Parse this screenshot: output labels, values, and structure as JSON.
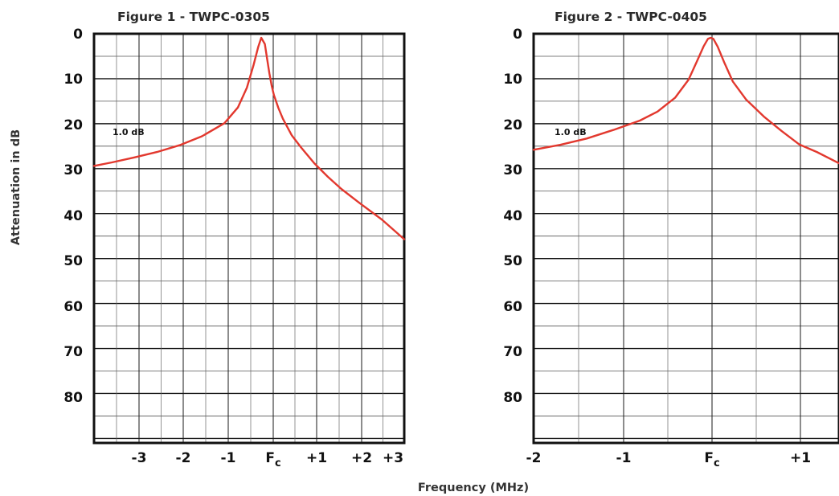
{
  "chart_data": [
    {
      "type": "line",
      "title": "Figure 1 - TWPC-0305",
      "x_tick_labels": [
        "-3",
        "-2",
        "-1",
        "F",
        "+1",
        "+2",
        "+3"
      ],
      "x_tick_values": [
        -3,
        -2,
        -1,
        0,
        1,
        2,
        3
      ],
      "center_label": {
        "main": "F",
        "sub": "c"
      },
      "y_tick_labels": [
        "0",
        "10",
        "20",
        "30",
        "40",
        "50",
        "60",
        "70",
        "80"
      ],
      "xlim": [
        -3.9,
        3.0
      ],
      "ylim": [
        0,
        91
      ],
      "y_inverted": true,
      "grid": true,
      "annotation": "1.0 dB",
      "series": [
        {
          "color": "#e2382e",
          "x": [
            -3.9,
            -3.5,
            -3.0,
            -2.5,
            -2.0,
            -1.5,
            -1.0,
            -0.7,
            -0.5,
            -0.35,
            -0.25,
            -0.18,
            -0.1,
            -0.05,
            0.0,
            0.05,
            0.1,
            0.2,
            0.3,
            0.5,
            0.7,
            1.0,
            1.3,
            1.6,
            2.0,
            2.5,
            3.0
          ],
          "y": [
            29.4,
            28.6,
            27.5,
            26.3,
            24.8,
            22.8,
            19.9,
            16.4,
            12.0,
            6.9,
            3.0,
            0.9,
            2.3,
            5.6,
            8.8,
            11.5,
            13.6,
            16.5,
            18.9,
            22.6,
            25.2,
            28.8,
            31.8,
            34.5,
            37.6,
            41.3,
            45.7
          ]
        }
      ]
    },
    {
      "type": "line",
      "title": "Figure 2 - TWPC-0405",
      "x_tick_labels": [
        "-2",
        "-1",
        "F",
        "+1"
      ],
      "x_tick_values": [
        -2,
        -1,
        0,
        1
      ],
      "center_label": {
        "main": "F",
        "sub": "c"
      },
      "y_tick_labels": [
        "0",
        "10",
        "20",
        "30",
        "40",
        "50",
        "60",
        "70",
        "80"
      ],
      "xlim": [
        -2.0,
        1.45
      ],
      "ylim": [
        0,
        91
      ],
      "y_inverted": true,
      "grid": true,
      "annotation": "1.0 dB",
      "series": [
        {
          "color": "#e2382e",
          "x": [
            -2.0,
            -1.7,
            -1.4,
            -1.1,
            -0.8,
            -0.6,
            -0.4,
            -0.25,
            -0.15,
            -0.08,
            -0.03,
            0.0,
            0.03,
            0.08,
            0.15,
            0.25,
            0.4,
            0.6,
            0.8,
            1.0,
            1.2,
            1.45
          ],
          "y": [
            25.8,
            24.7,
            23.3,
            21.4,
            19.3,
            17.3,
            14.2,
            10.2,
            5.9,
            2.8,
            1.1,
            0.9,
            1.1,
            2.9,
            6.2,
            10.6,
            14.6,
            18.4,
            21.6,
            24.6,
            26.3,
            28.8
          ]
        }
      ]
    }
  ],
  "shared": {
    "ylabel": "Attenuation in dB",
    "xlabel": "Frequency (MHz)"
  }
}
